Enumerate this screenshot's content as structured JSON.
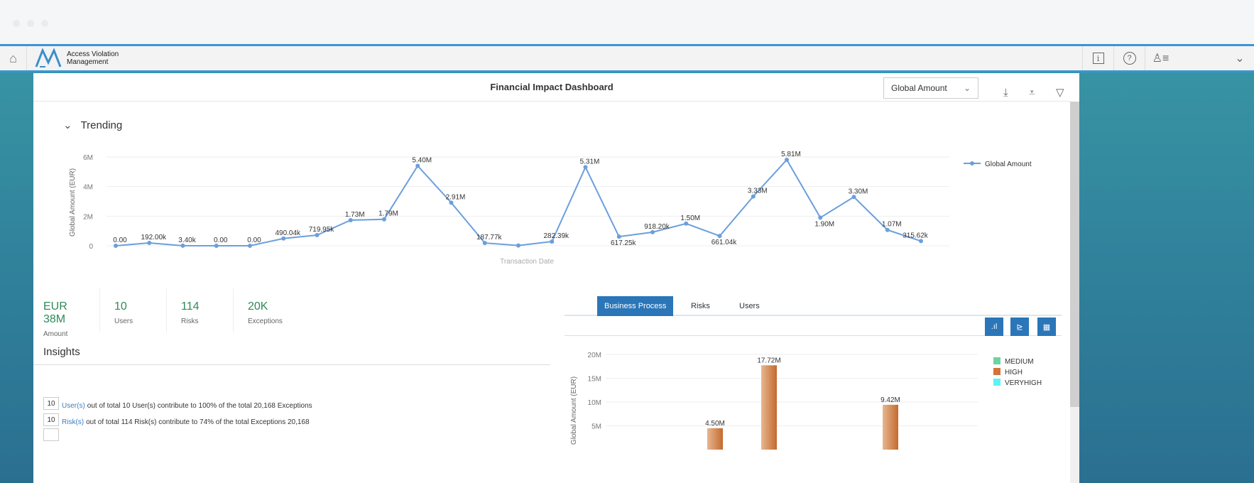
{
  "app": {
    "title_line1": "Access Violation",
    "title_line2": "Management"
  },
  "header_icons": [
    "home-icon",
    "info-icon",
    "help-icon",
    "user-menu-icon",
    "chevron-down-icon"
  ],
  "page": {
    "title": "Financial Impact Dashboard",
    "measure_select": "Global Amount"
  },
  "trending": {
    "label": "Trending"
  },
  "kpis": [
    {
      "value": "EUR 38M",
      "label": "Amount"
    },
    {
      "value": "10",
      "label": "Users"
    },
    {
      "value": "114",
      "label": "Risks"
    },
    {
      "value": "20K",
      "label": "Exceptions"
    }
  ],
  "insights": {
    "title": "Insights",
    "rows": [
      {
        "count": "10",
        "link": "User(s)",
        "text": "out of total 10 User(s) contribute to 100% of the total 20,168 Exceptions"
      },
      {
        "count": "10",
        "link": "Risk(s)",
        "text": "out of total 114 Risk(s) contribute to 74% of the total Exceptions 20,168"
      }
    ]
  },
  "tabs": [
    {
      "label": "Business Process",
      "active": true
    },
    {
      "label": "Risks"
    },
    {
      "label": "Users"
    }
  ],
  "colors": {
    "accent": "#2a76b8",
    "line": "#6a9fdc",
    "kpi": "#2e8b57",
    "medium": "#6fd3a0",
    "high": "#d2733a",
    "veryhigh": "#5ef2f7"
  },
  "chart_data": [
    {
      "type": "line",
      "xlabel": "Transaction Date",
      "ylabel": "Global Amount (EUR)",
      "ylim": [
        0,
        6000000
      ],
      "yticks": [
        "0",
        "2M",
        "4M",
        "6M"
      ],
      "ytick_values": [
        0,
        2000000,
        4000000,
        6000000
      ],
      "grid": true,
      "legend": "top-right",
      "series": [
        {
          "name": "Global Amount",
          "values": [
            0,
            192000,
            3400,
            0,
            0,
            490040,
            719950,
            1730000,
            1790000,
            5400000,
            2910000,
            187770,
            20000,
            282390,
            5310000,
            617250,
            918200,
            1500000,
            661040,
            3330000,
            5810000,
            1900000,
            3300000,
            1070000,
            315620
          ],
          "labels": [
            "0.00",
            "192.00k",
            "3.40k",
            "0.00",
            "0.00",
            "490.04k",
            "719.95k",
            "1.73M",
            "1.79M",
            "5.40M",
            "2.91M",
            "187.77k",
            "",
            "282.39k",
            "5.31M",
            "617.25k",
            "918.20k",
            "1.50M",
            "661.04k",
            "3.33M",
            "5.81M",
            "1.90M",
            "3.30M",
            "1.07M",
            "315.62k"
          ]
        }
      ]
    },
    {
      "type": "bar",
      "ylabel": "Global Amount (EUR)",
      "ylim": [
        0,
        20000000
      ],
      "yticks": [
        "5M",
        "10M",
        "15M",
        "20M"
      ],
      "ytick_values": [
        5000000,
        10000000,
        15000000,
        20000000
      ],
      "grid": true,
      "legend": "right",
      "legend_entries": [
        "MEDIUM",
        "HIGH",
        "VERYHIGH"
      ],
      "bars": [
        {
          "value": 4500000,
          "label": "4.50M",
          "series": "HIGH"
        },
        {
          "value": 17720000,
          "label": "17.72M",
          "series": "HIGH"
        },
        {
          "value": 9420000,
          "label": "9.42M",
          "series": "HIGH"
        }
      ]
    }
  ]
}
